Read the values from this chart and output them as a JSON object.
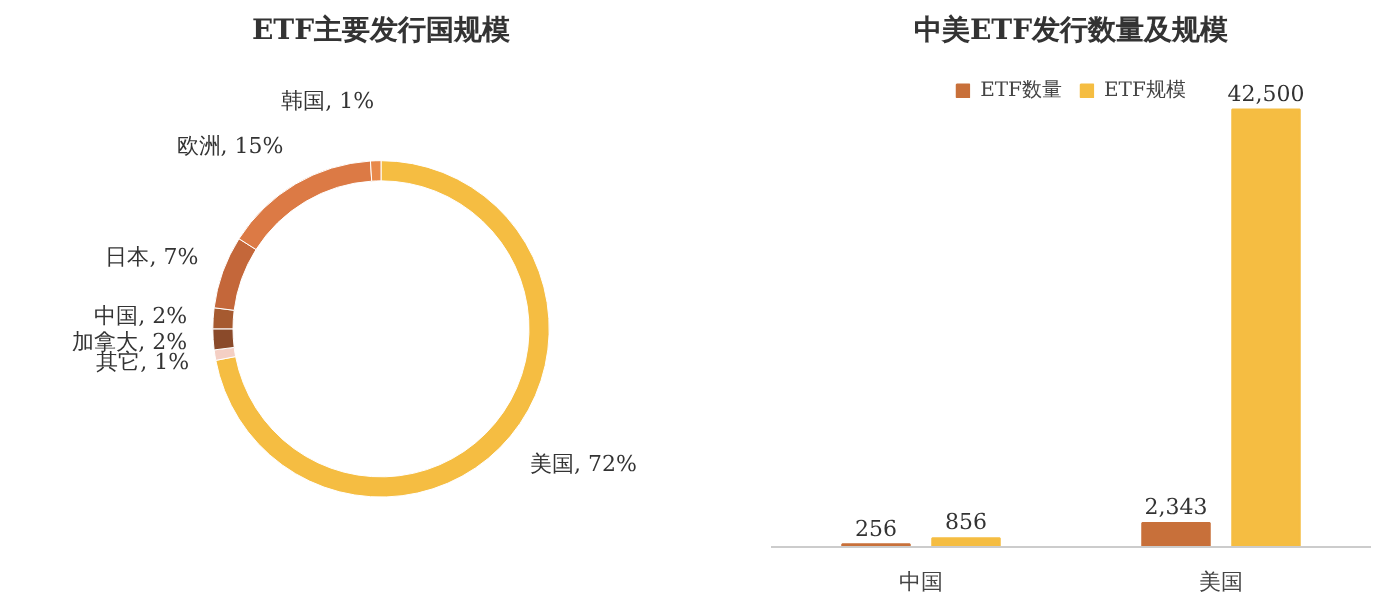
{
  "chart_data": [
    {
      "type": "donut",
      "title": "ETF主要发行国规模",
      "categories": [
        "美国",
        "其它",
        "加拿大",
        "中国",
        "日本",
        "欧洲",
        "韩国"
      ],
      "values": [
        72,
        1,
        2,
        2,
        7,
        15,
        1
      ],
      "colors": [
        "#f5bd42",
        "#f4cfc4",
        "#8a4a2a",
        "#a65a30",
        "#c4673a",
        "#dc7a45",
        "#e8894b"
      ],
      "value_labels": [
        ", 72%",
        ", 1%",
        ", 2%",
        ", 2%",
        ", 7%",
        ", 15%",
        ", 1%"
      ]
    },
    {
      "type": "bar",
      "title": "中美ETF发行数量及规模",
      "categories": [
        "中国",
        "美国"
      ],
      "series": [
        {
          "name": "ETF数量",
          "color": "#c8703a",
          "values": [
            256,
            2343
          ],
          "value_labels": [
            "256",
            "2,343"
          ]
        },
        {
          "name": "ETF规模",
          "color": "#f5bd42",
          "values": [
            856,
            42500
          ],
          "value_labels": [
            "856",
            "42,500"
          ]
        }
      ],
      "legend": "top"
    }
  ]
}
